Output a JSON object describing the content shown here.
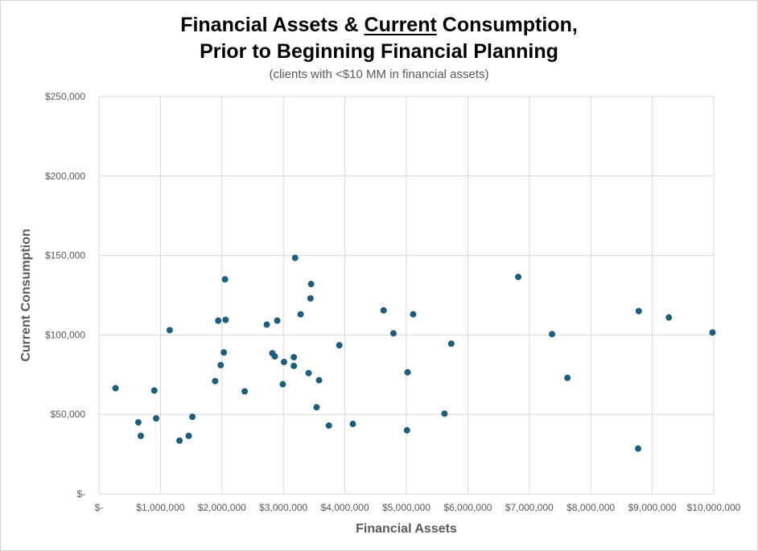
{
  "chart_data": {
    "type": "scatter",
    "title_parts": [
      "Financial Assets & ",
      "Current",
      " Consumption,"
    ],
    "title_line2": "Prior to Beginning Financial Planning",
    "subtitle": "(clients with <$10 MM in financial assets)",
    "xlabel": "Financial Assets",
    "ylabel": "Current Consumption",
    "xlim": [
      0,
      10000000
    ],
    "ylim": [
      0,
      250000
    ],
    "x_ticks": [
      0,
      1000000,
      2000000,
      3000000,
      4000000,
      5000000,
      6000000,
      7000000,
      8000000,
      9000000,
      10000000
    ],
    "x_tick_labels": [
      "$-",
      "$1,000,000",
      "$2,000,000",
      "$3,000,000",
      "$4,000,000",
      "$5,000,000",
      "$6,000,000",
      "$7,000,000",
      "$8,000,000",
      "$9,000,000",
      "$10,000,000"
    ],
    "y_ticks": [
      0,
      50000,
      100000,
      150000,
      200000,
      250000
    ],
    "y_tick_labels": [
      "$-",
      "$50,000",
      "$100,000",
      "$150,000",
      "$200,000",
      "$250,000"
    ],
    "grid": true,
    "marker_color": "#1f5d7a",
    "points": [
      {
        "x": 270000,
        "y": 66500
      },
      {
        "x": 640000,
        "y": 45000
      },
      {
        "x": 680000,
        "y": 36500
      },
      {
        "x": 900000,
        "y": 65000
      },
      {
        "x": 930000,
        "y": 47500
      },
      {
        "x": 1150000,
        "y": 103000
      },
      {
        "x": 1310000,
        "y": 33500
      },
      {
        "x": 1460000,
        "y": 36500
      },
      {
        "x": 1520000,
        "y": 48500
      },
      {
        "x": 1890000,
        "y": 71000
      },
      {
        "x": 1940000,
        "y": 109000
      },
      {
        "x": 1980000,
        "y": 81000
      },
      {
        "x": 2030000,
        "y": 89000
      },
      {
        "x": 2050000,
        "y": 135000
      },
      {
        "x": 2060000,
        "y": 109500
      },
      {
        "x": 2370000,
        "y": 64500
      },
      {
        "x": 2730000,
        "y": 106500
      },
      {
        "x": 2820000,
        "y": 88500
      },
      {
        "x": 2860000,
        "y": 86500
      },
      {
        "x": 2900000,
        "y": 109000
      },
      {
        "x": 2990000,
        "y": 69000
      },
      {
        "x": 3010000,
        "y": 83000
      },
      {
        "x": 3170000,
        "y": 80500
      },
      {
        "x": 3170000,
        "y": 86000
      },
      {
        "x": 3190000,
        "y": 148500
      },
      {
        "x": 3280000,
        "y": 113000
      },
      {
        "x": 3410000,
        "y": 76000
      },
      {
        "x": 3440000,
        "y": 123000
      },
      {
        "x": 3450000,
        "y": 132000
      },
      {
        "x": 3540000,
        "y": 54500
      },
      {
        "x": 3580000,
        "y": 71500
      },
      {
        "x": 3740000,
        "y": 43000
      },
      {
        "x": 3910000,
        "y": 93500
      },
      {
        "x": 4130000,
        "y": 44000
      },
      {
        "x": 4630000,
        "y": 115500
      },
      {
        "x": 4790000,
        "y": 101000
      },
      {
        "x": 5010000,
        "y": 40000
      },
      {
        "x": 5020000,
        "y": 76500
      },
      {
        "x": 5110000,
        "y": 113000
      },
      {
        "x": 5620000,
        "y": 50500
      },
      {
        "x": 5730000,
        "y": 94500
      },
      {
        "x": 6820000,
        "y": 136500
      },
      {
        "x": 7370000,
        "y": 100500
      },
      {
        "x": 7620000,
        "y": 73000
      },
      {
        "x": 8770000,
        "y": 28500
      },
      {
        "x": 8780000,
        "y": 115000
      },
      {
        "x": 9270000,
        "y": 111000
      },
      {
        "x": 9980000,
        "y": 101500
      }
    ]
  }
}
